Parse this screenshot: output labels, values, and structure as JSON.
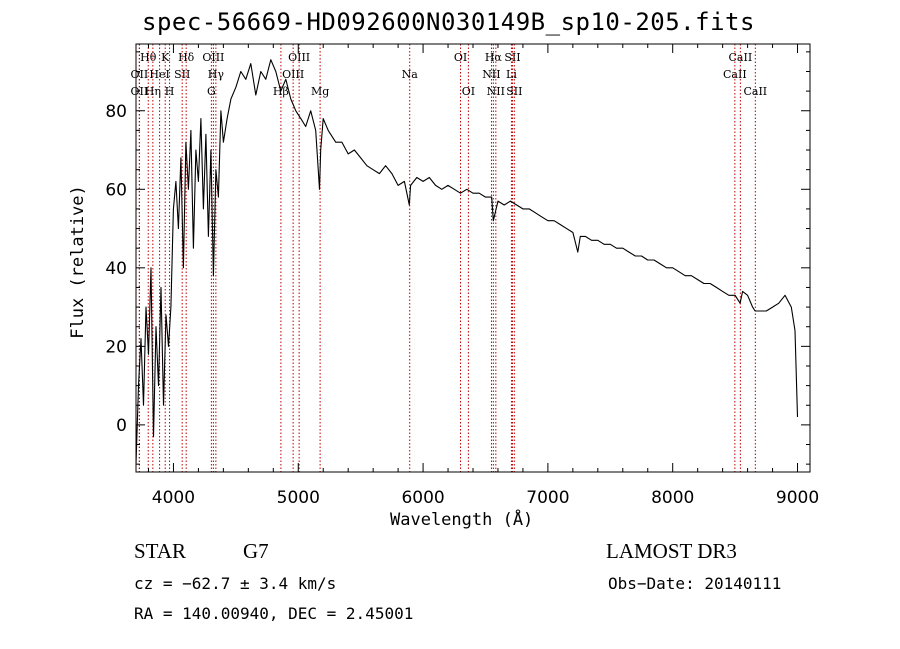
{
  "chart_data": {
    "type": "line",
    "title": "spec-56669-HD092600N030149B_sp10-205.fits",
    "xlabel": "Wavelength (Å)",
    "ylabel": "Flux (relative)",
    "xlim": [
      3700,
      9100
    ],
    "ylim": [
      -12,
      97
    ],
    "xticks": [
      4000,
      5000,
      6000,
      7000,
      8000,
      9000
    ],
    "yticks": [
      0,
      20,
      40,
      60,
      80
    ],
    "grid": false,
    "series": [
      {
        "name": "spectrum",
        "x": [
          3700,
          3720,
          3740,
          3760,
          3780,
          3800,
          3820,
          3840,
          3860,
          3880,
          3900,
          3920,
          3940,
          3960,
          3980,
          4000,
          4020,
          4040,
          4060,
          4080,
          4100,
          4120,
          4140,
          4160,
          4180,
          4200,
          4220,
          4240,
          4260,
          4280,
          4300,
          4320,
          4340,
          4360,
          4380,
          4400,
          4430,
          4460,
          4500,
          4540,
          4580,
          4620,
          4660,
          4700,
          4740,
          4780,
          4820,
          4860,
          4900,
          4940,
          4980,
          5020,
          5060,
          5100,
          5140,
          5170,
          5180,
          5200,
          5240,
          5300,
          5350,
          5400,
          5450,
          5500,
          5550,
          5600,
          5650,
          5700,
          5750,
          5800,
          5850,
          5890,
          5900,
          5950,
          6000,
          6050,
          6100,
          6150,
          6200,
          6250,
          6300,
          6350,
          6400,
          6450,
          6500,
          6550,
          6563,
          6600,
          6650,
          6700,
          6750,
          6800,
          6850,
          6900,
          6950,
          7000,
          7050,
          7100,
          7150,
          7200,
          7240,
          7260,
          7300,
          7350,
          7400,
          7450,
          7500,
          7550,
          7600,
          7650,
          7700,
          7750,
          7800,
          7850,
          7900,
          7950,
          8000,
          8050,
          8100,
          8150,
          8200,
          8250,
          8300,
          8350,
          8400,
          8450,
          8500,
          8540,
          8560,
          8600,
          8640,
          8660,
          8700,
          8750,
          8800,
          8850,
          8900,
          8950,
          8980,
          9000
        ],
        "y": [
          -10,
          10,
          22,
          5,
          30,
          18,
          40,
          -3,
          25,
          10,
          35,
          5,
          28,
          20,
          30,
          55,
          62,
          50,
          68,
          40,
          72,
          60,
          75,
          45,
          70,
          62,
          78,
          55,
          74,
          48,
          70,
          38,
          65,
          58,
          80,
          72,
          78,
          83,
          86,
          90,
          88,
          92,
          84,
          90,
          88,
          93,
          90,
          85,
          88,
          83,
          80,
          78,
          76,
          80,
          75,
          60,
          70,
          78,
          75,
          72,
          72,
          69,
          70,
          68,
          66,
          65,
          64,
          66,
          64,
          61,
          62,
          56,
          61,
          63,
          62,
          63,
          61,
          60,
          61,
          60,
          59,
          60,
          59,
          59,
          58,
          58,
          52,
          57,
          56,
          57,
          56,
          55,
          55,
          54,
          53,
          52,
          52,
          51,
          50,
          49,
          44,
          48,
          48,
          47,
          47,
          46,
          46,
          45,
          45,
          44,
          43,
          43,
          42,
          42,
          41,
          40,
          40,
          39,
          38,
          38,
          37,
          36,
          36,
          35,
          34,
          33,
          33,
          31,
          34,
          33,
          30,
          29,
          29,
          29,
          30,
          31,
          33,
          30,
          24,
          2
        ]
      }
    ],
    "lines": [
      {
        "label": "Hθ",
        "x": 3798,
        "row": 1
      },
      {
        "label": "OII",
        "x": 3727,
        "row": 2
      },
      {
        "label": "OII",
        "x": 3727,
        "row": 3
      },
      {
        "label": "Hη",
        "x": 3835,
        "row": 3
      },
      {
        "label": "HeI",
        "x": 3889,
        "row": 2
      },
      {
        "label": "K",
        "x": 3934,
        "row": 1
      },
      {
        "label": "H",
        "x": 3969,
        "row": 3
      },
      {
        "label": "SII",
        "x": 4070,
        "row": 2
      },
      {
        "label": "Hδ",
        "x": 4102,
        "row": 1
      },
      {
        "label": "OIII",
        "x": 4320,
        "row": 1
      },
      {
        "label": "Hγ",
        "x": 4340,
        "row": 2
      },
      {
        "label": "G",
        "x": 4304,
        "row": 3
      },
      {
        "label": "OIII",
        "x": 5007,
        "row": 1
      },
      {
        "label": "OIII",
        "x": 4959,
        "row": 2
      },
      {
        "label": "Hβ",
        "x": 4861,
        "row": 3
      },
      {
        "label": "Mg",
        "x": 5175,
        "row": 3
      },
      {
        "label": "Na",
        "x": 5893,
        "row": 2
      },
      {
        "label": "OI",
        "x": 6300,
        "row": 1
      },
      {
        "label": "OI",
        "x": 6363,
        "row": 3
      },
      {
        "label": "Hα",
        "x": 6563,
        "row": 1
      },
      {
        "label": "NII",
        "x": 6548,
        "row": 2
      },
      {
        "label": "NII",
        "x": 6583,
        "row": 3
      },
      {
        "label": "SII",
        "x": 6716,
        "row": 1
      },
      {
        "label": "Li",
        "x": 6708,
        "row": 2
      },
      {
        "label": "SII",
        "x": 6731,
        "row": 3
      },
      {
        "label": "CaII",
        "x": 8542,
        "row": 1
      },
      {
        "label": "CaII",
        "x": 8498,
        "row": 2
      },
      {
        "label": "CaII",
        "x": 8662,
        "row": 3
      }
    ]
  },
  "info": {
    "object_class": "STAR",
    "subclass": "G7",
    "survey": "LAMOST DR3",
    "cz": "cz = −62.7 ± 3.4 km/s",
    "obs_date": "Obs−Date: 20140111",
    "radec": "RA = 140.00940, DEC =   2.45001"
  }
}
